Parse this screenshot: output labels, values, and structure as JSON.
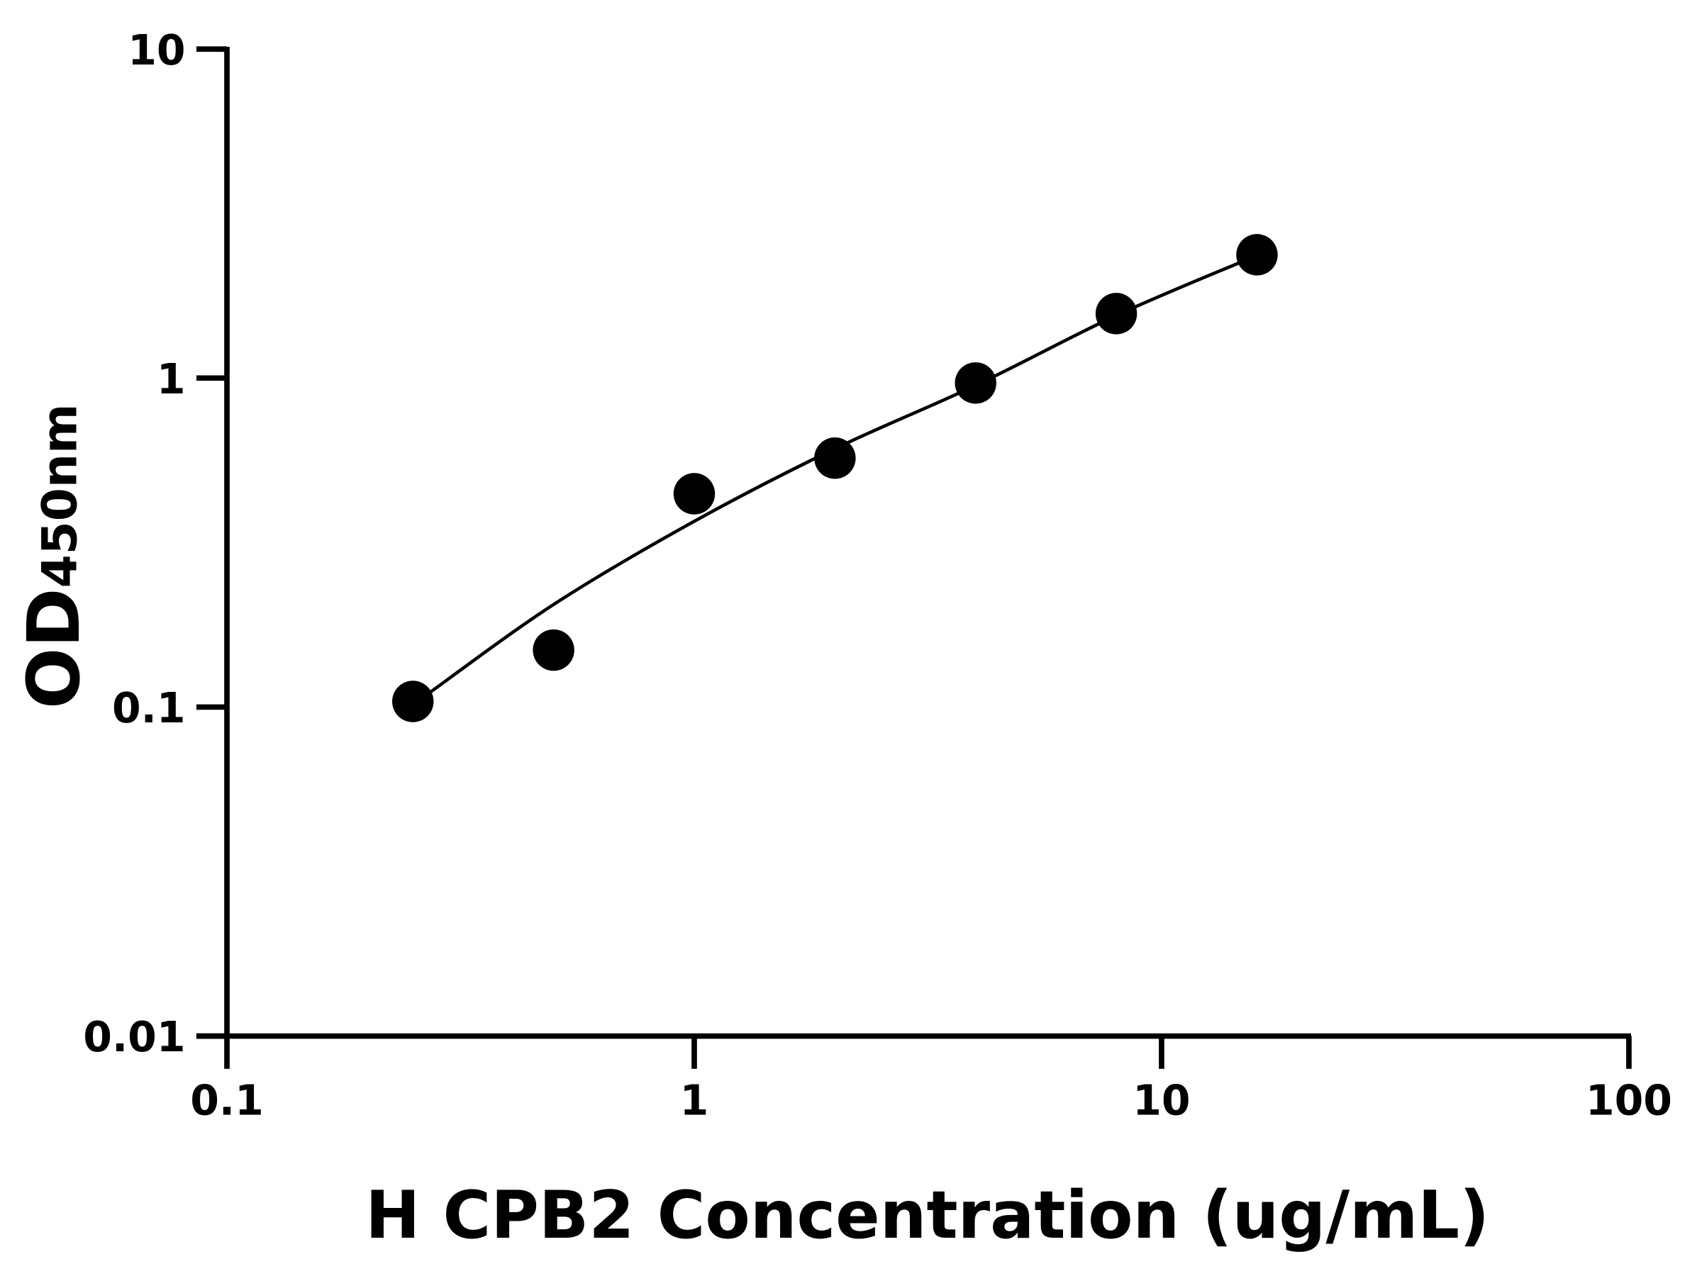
{
  "chart_data": {
    "type": "scatter",
    "title": "",
    "xlabel": "H CPB2 Concentration (ug/mL)",
    "ylabel": "OD",
    "ylabel_subscript": "450nm",
    "xscale": "log",
    "yscale": "log",
    "xlim": [
      0.1,
      100
    ],
    "ylim": [
      0.01,
      10
    ],
    "xticks": [
      0.1,
      1,
      10,
      100
    ],
    "xtick_labels": [
      "0.1",
      "1",
      "10",
      "100"
    ],
    "yticks": [
      0.01,
      0.1,
      1,
      10
    ],
    "ytick_labels": [
      "0.01",
      "0.1",
      "1",
      "10"
    ],
    "grid": false,
    "color": "#000000",
    "points": {
      "x": [
        0.25,
        0.5,
        1,
        2,
        4,
        8,
        16
      ],
      "y": [
        0.104,
        0.149,
        0.445,
        0.571,
        0.966,
        1.57,
        2.37
      ]
    },
    "fit_curve": {
      "x": [
        0.27,
        0.5,
        1,
        2,
        4,
        8,
        15.1
      ],
      "y": [
        0.11,
        0.205,
        0.367,
        0.61,
        0.95,
        1.55,
        2.28
      ]
    }
  }
}
